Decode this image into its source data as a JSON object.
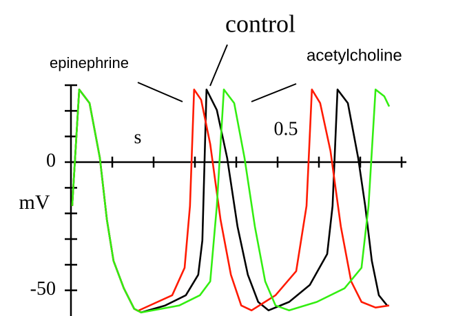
{
  "chart_data": {
    "type": "line",
    "annotations": [
      "control",
      "epinephrine",
      "acetylcholine"
    ],
    "xlabel": "s",
    "ylabel": "mV",
    "xlim": [
      0,
      0.8
    ],
    "ylim": [
      -60,
      30
    ],
    "xticks": [
      0.5
    ],
    "xminor_ticks": [
      0.1,
      0.2,
      0.3,
      0.4,
      0.6,
      0.7,
      0.8
    ],
    "yticks": [
      -50,
      0
    ],
    "yminor_ticks": [
      -40,
      -30,
      -20,
      -10,
      10,
      20,
      30
    ],
    "series": [
      {
        "name": "control",
        "color": "#000000",
        "x": [
          0.003,
          0.02,
          0.045,
          0.07,
          0.087,
          0.103,
          0.128,
          0.153,
          0.17,
          0.228,
          0.278,
          0.308,
          0.318,
          0.328,
          0.353,
          0.378,
          0.403,
          0.428,
          0.453,
          0.478,
          0.528,
          0.578,
          0.62,
          0.633,
          0.645,
          0.67,
          0.695,
          0.712,
          0.728,
          0.745,
          0.765
        ],
        "values": [
          -17.1,
          28.3,
          23,
          1.6,
          -22.5,
          -38.5,
          -49.2,
          -57.2,
          -58.6,
          -55.9,
          -51.9,
          -43.9,
          -30.5,
          28.3,
          20.3,
          1.6,
          -25.1,
          -43.9,
          -54.5,
          -57.8,
          -54.5,
          -47.9,
          -35.8,
          -17.1,
          28.3,
          23,
          1.6,
          -17.1,
          -38.5,
          -51.9,
          -55.9
        ]
      },
      {
        "name": "epinephrine",
        "color": "#ff1a00",
        "x": [
          0.003,
          0.02,
          0.045,
          0.07,
          0.087,
          0.103,
          0.128,
          0.153,
          0.162,
          0.245,
          0.275,
          0.288,
          0.298,
          0.315,
          0.337,
          0.362,
          0.387,
          0.412,
          0.437,
          0.495,
          0.545,
          0.57,
          0.583,
          0.603,
          0.628,
          0.653,
          0.678,
          0.703,
          0.737,
          0.77
        ],
        "values": [
          -17.1,
          28.3,
          23,
          1.6,
          -22.5,
          -38.5,
          -49.2,
          -57.2,
          -58,
          -51.9,
          -41.2,
          -17.1,
          28.3,
          24.3,
          7,
          -22.5,
          -43.9,
          -55.9,
          -57.8,
          -51.9,
          -42.5,
          -17.1,
          28.3,
          23,
          4.3,
          -25.1,
          -46.5,
          -54.5,
          -56.7,
          -55.9
        ]
      },
      {
        "name": "acetylcholine",
        "color": "#33ee11",
        "x": [
          0.003,
          0.02,
          0.045,
          0.07,
          0.087,
          0.103,
          0.128,
          0.153,
          0.17,
          0.262,
          0.312,
          0.337,
          0.353,
          0.37,
          0.395,
          0.42,
          0.445,
          0.47,
          0.495,
          0.528,
          0.595,
          0.662,
          0.703,
          0.72,
          0.737,
          0.758,
          0.77
        ],
        "values": [
          -17.1,
          28.3,
          23,
          1.6,
          -22.5,
          -38.5,
          -49.2,
          -57.2,
          -58.6,
          -55.9,
          -51.9,
          -46.5,
          -17.1,
          28.3,
          23,
          1.6,
          -25.1,
          -46.5,
          -55.9,
          -57.8,
          -54.5,
          -49.2,
          -41.2,
          -17.1,
          28.3,
          25.7,
          21.7
        ]
      }
    ]
  }
}
